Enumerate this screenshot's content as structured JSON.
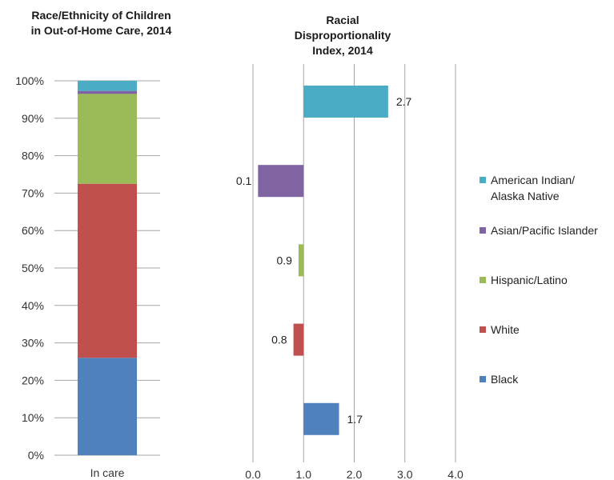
{
  "chart_data": [
    {
      "type": "bar",
      "stacked": true,
      "orientation": "vertical",
      "title": "Race/Ethnicity of Children in Out-of-Home Care, 2014",
      "title_lines": [
        "Race/Ethnicity of Children",
        "in Out-of-Home Care, 2014"
      ],
      "categories": [
        "In care"
      ],
      "ylim": [
        0,
        100
      ],
      "yticks": [
        "0%",
        "10%",
        "20%",
        "30%",
        "40%",
        "50%",
        "60%",
        "70%",
        "80%",
        "90%",
        "100%"
      ],
      "grid": true,
      "series": [
        {
          "name": "Black",
          "values": [
            26
          ],
          "color": "#4f81bd"
        },
        {
          "name": "White",
          "values": [
            46.5
          ],
          "color": "#c0504d"
        },
        {
          "name": "Hispanic/Latino",
          "values": [
            24
          ],
          "color": "#9bbb59"
        },
        {
          "name": "Asian/Pacific Islander",
          "values": [
            0.8
          ],
          "color": "#8064a2"
        },
        {
          "name": "American Indian/ Alaska Native",
          "values": [
            2.7
          ],
          "color": "#4bacc6"
        }
      ]
    },
    {
      "type": "bar",
      "orientation": "horizontal",
      "title": "Racial Disproportionality Index, 2014",
      "title_lines": [
        "Racial Disproportionality",
        "Index, 2014"
      ],
      "baseline": 1.0,
      "xlim": [
        0,
        4
      ],
      "xticks": [
        "0.0",
        "1.0",
        "2.0",
        "3.0",
        "4.0"
      ],
      "grid": true,
      "bars": [
        {
          "name": "American Indian/ Alaska Native",
          "value": 2.67,
          "label": "2.7",
          "color": "#4bacc6"
        },
        {
          "name": "Asian/Pacific Islander",
          "value": 0.1,
          "label": "0.1",
          "color": "#8064a2"
        },
        {
          "name": "Hispanic/Latino",
          "value": 0.9,
          "label": "0.9",
          "color": "#9bbb59"
        },
        {
          "name": "White",
          "value": 0.8,
          "label": "0.8",
          "color": "#c0504d"
        },
        {
          "name": "Black",
          "value": 1.7,
          "label": "1.7",
          "color": "#4f81bd"
        }
      ]
    }
  ],
  "legend": {
    "placement": "right",
    "items": [
      {
        "lines": [
          "American Indian/",
          "Alaska Native"
        ],
        "color": "#4bacc6"
      },
      {
        "lines": [
          "Asian/Pacific Islander"
        ],
        "color": "#8064a2"
      },
      {
        "lines": [
          "Hispanic/Latino"
        ],
        "color": "#9bbb59"
      },
      {
        "lines": [
          "White"
        ],
        "color": "#c0504d"
      },
      {
        "lines": [
          "Black"
        ],
        "color": "#4f81bd"
      }
    ]
  },
  "colors": {
    "gridline": "#a6a6a6"
  }
}
